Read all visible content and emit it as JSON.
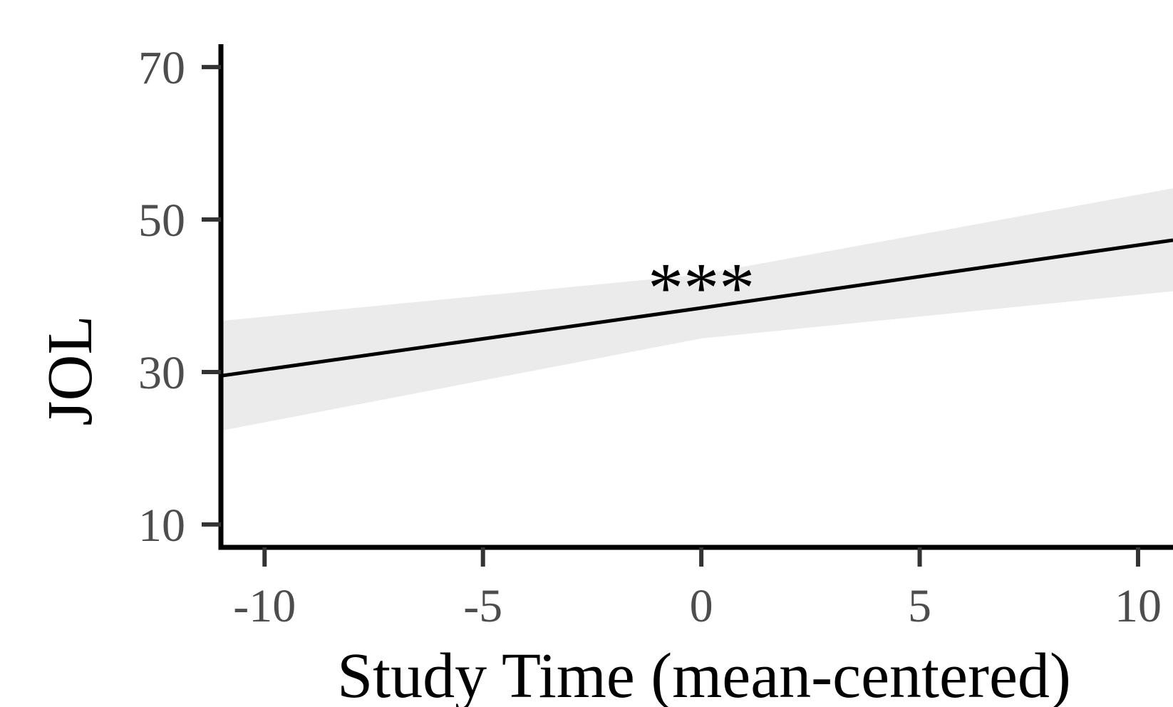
{
  "chart_data": {
    "type": "line",
    "xlabel": "Study Time (mean-centered)",
    "ylabel": "JOL",
    "xlim": [
      -11,
      10.8
    ],
    "ylim": [
      7,
      73
    ],
    "x_ticks": [
      -10,
      -5,
      0,
      5,
      10
    ],
    "x_tick_labels": [
      "-10",
      "-5",
      "0",
      "5",
      "10"
    ],
    "y_ticks": [
      10,
      30,
      50,
      70
    ],
    "y_tick_labels": [
      "10",
      "30",
      "50",
      "70"
    ],
    "series": [
      {
        "x": [
          -11,
          0,
          10.8
        ],
        "y": [
          29.5,
          38.4,
          47.3
        ],
        "lower": [
          22.3,
          34.4,
          40.6
        ],
        "upper": [
          36.7,
          42.8,
          54.1
        ]
      }
    ],
    "annotations": [
      {
        "text": "***",
        "x": 0,
        "y": 44.5
      }
    ],
    "grid": false,
    "legend": "none",
    "colors": {
      "line": "#000000",
      "ribbon": "#ebebeb",
      "axis": "#000000",
      "tick": "#333333",
      "tick_label": "#4d4d4d"
    }
  }
}
